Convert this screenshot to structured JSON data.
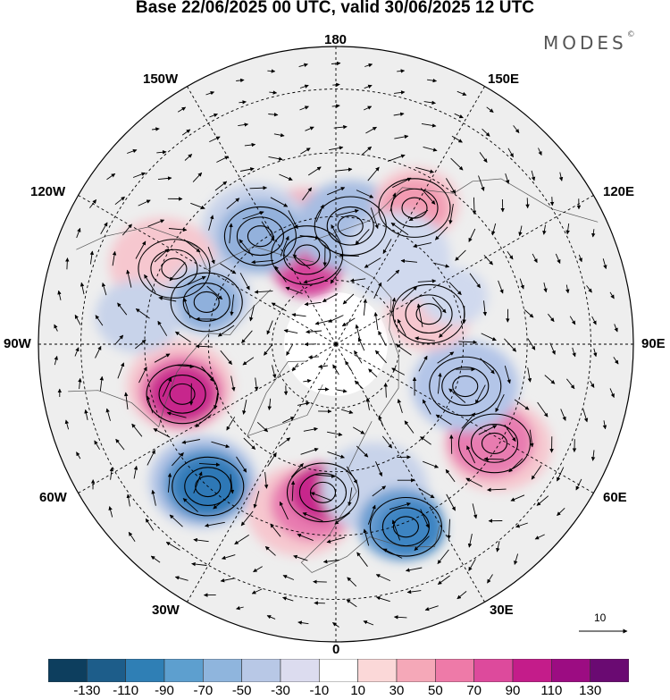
{
  "title": "Base 22/06/2025 00 UTC, valid 30/06/2025 12 UTC",
  "logo": {
    "text": "MODES",
    "mark": "©"
  },
  "longitude_labels": {
    "top": "180",
    "bottom": "0",
    "left": "90W",
    "right": "90E",
    "upper_left": "150W",
    "upper_right": "150E",
    "mid_left": "120W",
    "mid_right": "120E",
    "lower_left": "60W",
    "lower_right": "60E",
    "bottom_left": "30W",
    "bottom_right": "30E"
  },
  "colorbar": {
    "colors": [
      "#0d3e5e",
      "#1d5d8a",
      "#2f7fb5",
      "#5d9fcf",
      "#8fb5dd",
      "#b8c8e6",
      "#dcdcef",
      "#ffffff",
      "#fbd8d8",
      "#f5a8b8",
      "#ee7aa8",
      "#dd4a9c",
      "#c41c8a",
      "#9c0c82",
      "#6a0a72"
    ],
    "tick_labels": [
      "-130",
      "-110",
      "-90",
      "-70",
      "-50",
      "-30",
      "-10",
      "10",
      "30",
      "50",
      "70",
      "90",
      "110",
      "130"
    ]
  },
  "reference_vector": {
    "label": "10"
  },
  "anomaly_blobs": [
    {
      "color": "#f3b6c3",
      "lat": 63,
      "lon": -164
    },
    {
      "color": "#e17db0",
      "lat": 68,
      "lon": -162
    },
    {
      "color": "#d6459b",
      "lat": 71,
      "lon": -160
    },
    {
      "color": "#c8d3ea",
      "lat": 57,
      "lon": -145
    },
    {
      "color": "#93b1dc",
      "lat": 59,
      "lon": -145
    },
    {
      "color": "#c8d3ea",
      "lat": 60,
      "lon": 175
    },
    {
      "color": "#a7bde2",
      "lat": 62,
      "lon": 173
    },
    {
      "color": "#f6c7cf",
      "lat": 52,
      "lon": 150
    },
    {
      "color": "#f29bb2",
      "lat": 53,
      "lon": 150
    },
    {
      "color": "#f6c7cf",
      "lat": 45,
      "lon": -115
    },
    {
      "color": "#c8d3ea",
      "lat": 58,
      "lon": -110
    },
    {
      "color": "#8fb0dc",
      "lat": 58,
      "lon": -108
    },
    {
      "color": "#f6c7cf",
      "lat": 52,
      "lon": -75
    },
    {
      "color": "#e87bb0",
      "lat": 52,
      "lon": -73
    },
    {
      "color": "#c7288c",
      "lat": 52,
      "lon": -72
    },
    {
      "color": "#b2c4e6",
      "lat": 45,
      "lon": -44
    },
    {
      "color": "#5995cc",
      "lat": 45,
      "lon": -43
    },
    {
      "color": "#2f78b6",
      "lat": 45,
      "lon": -42
    },
    {
      "color": "#f6c7cf",
      "lat": 50,
      "lon": -12
    },
    {
      "color": "#e87bb0",
      "lat": 52,
      "lon": -8
    },
    {
      "color": "#c7288c",
      "lat": 55,
      "lon": -5
    },
    {
      "color": "#c8d3ea",
      "lat": 55,
      "lon": 15
    },
    {
      "color": "#6a9ed2",
      "lat": 45,
      "lon": 20
    },
    {
      "color": "#3d84c2",
      "lat": 43,
      "lon": 22
    },
    {
      "color": "#f6c7cf",
      "lat": 45,
      "lon": 58
    },
    {
      "color": "#e87bb0",
      "lat": 47,
      "lon": 58
    },
    {
      "color": "#d0d9ee",
      "lat": 58,
      "lon": 73
    },
    {
      "color": "#b3c5e8",
      "lat": 58,
      "lon": 72
    },
    {
      "color": "#f6c7cf",
      "lat": 67,
      "lon": 108
    },
    {
      "color": "#d0d9ee",
      "lat": 60,
      "lon": 112
    },
    {
      "color": "#d0d9ee",
      "lat": 65,
      "lon": 145
    },
    {
      "color": "#c8d3ea",
      "lat": 43,
      "lon": -98
    }
  ]
}
